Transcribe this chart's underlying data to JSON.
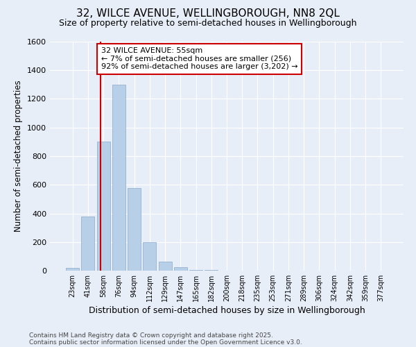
{
  "title": "32, WILCE AVENUE, WELLINGBOROUGH, NN8 2QL",
  "subtitle": "Size of property relative to semi-detached houses in Wellingborough",
  "xlabel": "Distribution of semi-detached houses by size in Wellingborough",
  "ylabel": "Number of semi-detached properties",
  "categories": [
    "23sqm",
    "41sqm",
    "58sqm",
    "76sqm",
    "94sqm",
    "112sqm",
    "129sqm",
    "147sqm",
    "165sqm",
    "182sqm",
    "200sqm",
    "218sqm",
    "235sqm",
    "253sqm",
    "271sqm",
    "289sqm",
    "306sqm",
    "324sqm",
    "342sqm",
    "359sqm",
    "377sqm"
  ],
  "values": [
    20,
    380,
    900,
    1300,
    575,
    200,
    65,
    25,
    5,
    3,
    0,
    0,
    0,
    0,
    0,
    0,
    0,
    0,
    0,
    0,
    0
  ],
  "bar_color": "#b8cfe8",
  "bar_edge_color": "#88aacc",
  "background_color": "#e8eef8",
  "grid_color": "#ffffff",
  "vline_color": "#cc0000",
  "vline_pos": 1.8,
  "annotation_text": "32 WILCE AVENUE: 55sqm\n← 7% of semi-detached houses are smaller (256)\n92% of semi-detached houses are larger (3,202) →",
  "annotation_box_color": "#ffffff",
  "annotation_box_edge": "#cc0000",
  "footnote1": "Contains HM Land Registry data © Crown copyright and database right 2025.",
  "footnote2": "Contains public sector information licensed under the Open Government Licence v3.0.",
  "ylim": [
    0,
    1600
  ],
  "yticks": [
    0,
    200,
    400,
    600,
    800,
    1000,
    1200,
    1400,
    1600
  ],
  "title_fontsize": 11,
  "subtitle_fontsize": 9,
  "xlabel_fontsize": 9,
  "ylabel_fontsize": 8.5,
  "annotation_fontsize": 8
}
